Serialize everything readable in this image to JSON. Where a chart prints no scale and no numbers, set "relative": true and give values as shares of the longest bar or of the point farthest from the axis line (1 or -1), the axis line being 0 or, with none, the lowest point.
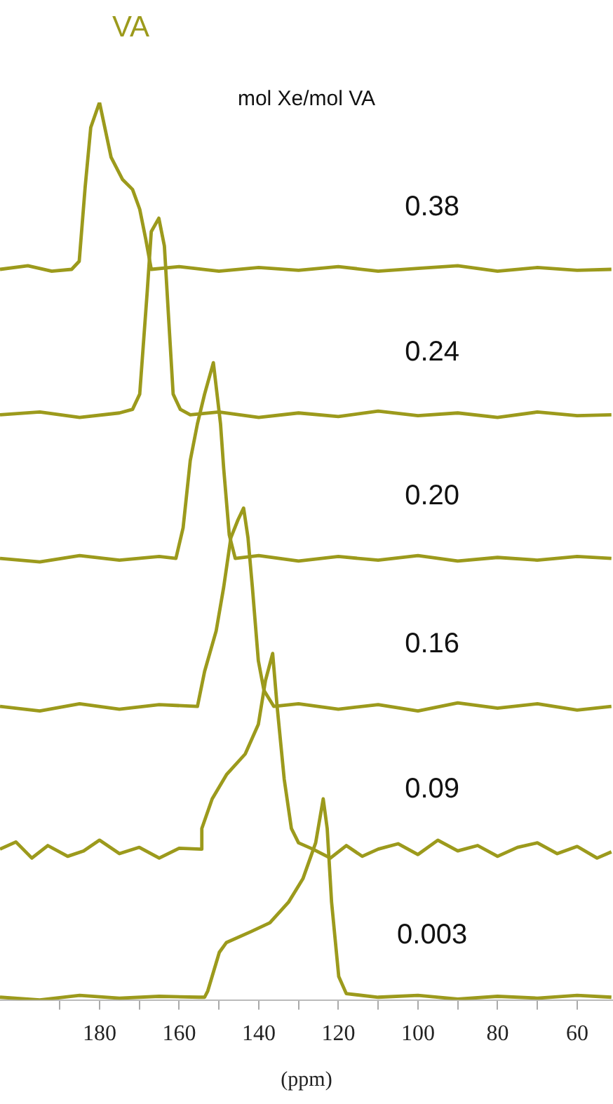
{
  "chart_data": {
    "type": "line",
    "title": "VA",
    "legend_title": "mol Xe/mol VA",
    "xlabel": "(ppm)",
    "relative": true,
    "tick_labels": "x",
    "xlim": [
      205,
      51
    ],
    "xticks": [
      {
        "value": 190,
        "label": null
      },
      180,
      {
        "value": 170,
        "label": null
      },
      160,
      {
        "value": 150,
        "label": null
      },
      140,
      {
        "value": 130,
        "label": null
      },
      120,
      {
        "value": 110,
        "label": null
      },
      100,
      {
        "value": 90,
        "label": null
      },
      80,
      {
        "value": 70,
        "label": null
      },
      60
    ],
    "series": [
      {
        "name": "0.38",
        "color": "#9c9a1c",
        "x": [
          205,
          198,
          192,
          187,
          185.1,
          183.6,
          182.2,
          180,
          177.1,
          174.2,
          171.7,
          169.9,
          168.4,
          167,
          160,
          150,
          140,
          130,
          120,
          110,
          100,
          90,
          80,
          70,
          60,
          51.4
        ],
        "values": [
          0.814,
          0.818,
          0.812,
          0.814,
          0.823,
          0.906,
          0.972,
          1.0,
          0.939,
          0.914,
          0.903,
          0.881,
          0.848,
          0.814,
          0.817,
          0.812,
          0.816,
          0.813,
          0.817,
          0.812,
          0.815,
          0.818,
          0.812,
          0.816,
          0.813,
          0.814
        ]
      },
      {
        "name": "0.24",
        "color": "#9c9a1c",
        "x": [
          205,
          195,
          185,
          175,
          171.7,
          169.9,
          168,
          167,
          165.1,
          163.7,
          162.6,
          161.5,
          159.7,
          157.2,
          150,
          140,
          130,
          120,
          110,
          100,
          90,
          80,
          70,
          60,
          51.4
        ],
        "values": [
          0.652,
          0.655,
          0.649,
          0.654,
          0.658,
          0.675,
          0.79,
          0.856,
          0.871,
          0.84,
          0.757,
          0.675,
          0.658,
          0.652,
          0.655,
          0.649,
          0.654,
          0.65,
          0.656,
          0.651,
          0.654,
          0.649,
          0.655,
          0.651,
          0.652
        ]
      },
      {
        "name": "0.20",
        "color": "#9c9a1c",
        "x": [
          205,
          195,
          185,
          175,
          165,
          160.8,
          159,
          157.2,
          155.4,
          153.6,
          151.4,
          149.6,
          148.8,
          147.4,
          145.9,
          140,
          130,
          120,
          110,
          100,
          90,
          80,
          70,
          60,
          51.4
        ],
        "values": [
          0.492,
          0.488,
          0.495,
          0.49,
          0.494,
          0.492,
          0.526,
          0.601,
          0.642,
          0.675,
          0.71,
          0.642,
          0.592,
          0.518,
          0.492,
          0.495,
          0.489,
          0.494,
          0.49,
          0.495,
          0.489,
          0.493,
          0.49,
          0.494,
          0.492
        ]
      },
      {
        "name": "0.16",
        "color": "#9c9a1c",
        "x": [
          205,
          195,
          185,
          175,
          165,
          155.4,
          153.6,
          150.7,
          148.8,
          147,
          145.2,
          143.8,
          142.7,
          141.6,
          140.1,
          138.7,
          136.2,
          130,
          120,
          110,
          100,
          90,
          80,
          70,
          60,
          51.4
        ],
        "values": [
          0.327,
          0.322,
          0.33,
          0.324,
          0.329,
          0.327,
          0.366,
          0.411,
          0.46,
          0.515,
          0.535,
          0.548,
          0.515,
          0.46,
          0.378,
          0.345,
          0.327,
          0.33,
          0.324,
          0.329,
          0.322,
          0.331,
          0.325,
          0.33,
          0.323,
          0.327
        ]
      },
      {
        "name": "0.09",
        "color": "#9c9a1c",
        "x": [
          205,
          201,
          197,
          193,
          188,
          184,
          180,
          175,
          170,
          165,
          160,
          154.6,
          154.3,
          151.7,
          148.1,
          143.4,
          140.1,
          138.3,
          136.5,
          135.4,
          133.6,
          131.8,
          130,
          126.4,
          122,
          118,
          114,
          110,
          105,
          100,
          95,
          90,
          85,
          80,
          75,
          70,
          65,
          60,
          55,
          51.4
        ],
        "values": [
          0.168,
          0.176,
          0.158,
          0.172,
          0.16,
          0.166,
          0.178,
          0.163,
          0.17,
          0.158,
          0.169,
          0.168,
          0.191,
          0.224,
          0.251,
          0.274,
          0.307,
          0.356,
          0.386,
          0.328,
          0.246,
          0.191,
          0.175,
          0.168,
          0.158,
          0.172,
          0.16,
          0.168,
          0.174,
          0.162,
          0.178,
          0.166,
          0.172,
          0.16,
          0.17,
          0.175,
          0.163,
          0.171,
          0.158,
          0.165
        ]
      },
      {
        "name": "0.003",
        "color": "#9c9a1c",
        "x": [
          205,
          195,
          185,
          175,
          165,
          155,
          153.6,
          152.8,
          149.9,
          148.1,
          142,
          137.2,
          132.5,
          128.9,
          125.7,
          123.8,
          122.8,
          121.7,
          119.9,
          118,
          110,
          100,
          90,
          80,
          70,
          60,
          51.4
        ],
        "values": [
          0.003,
          0.0,
          0.005,
          0.002,
          0.004,
          0.003,
          0.003,
          0.01,
          0.053,
          0.064,
          0.076,
          0.086,
          0.109,
          0.135,
          0.175,
          0.224,
          0.191,
          0.109,
          0.026,
          0.007,
          0.003,
          0.005,
          0.001,
          0.004,
          0.002,
          0.005,
          0.003
        ]
      }
    ]
  }
}
